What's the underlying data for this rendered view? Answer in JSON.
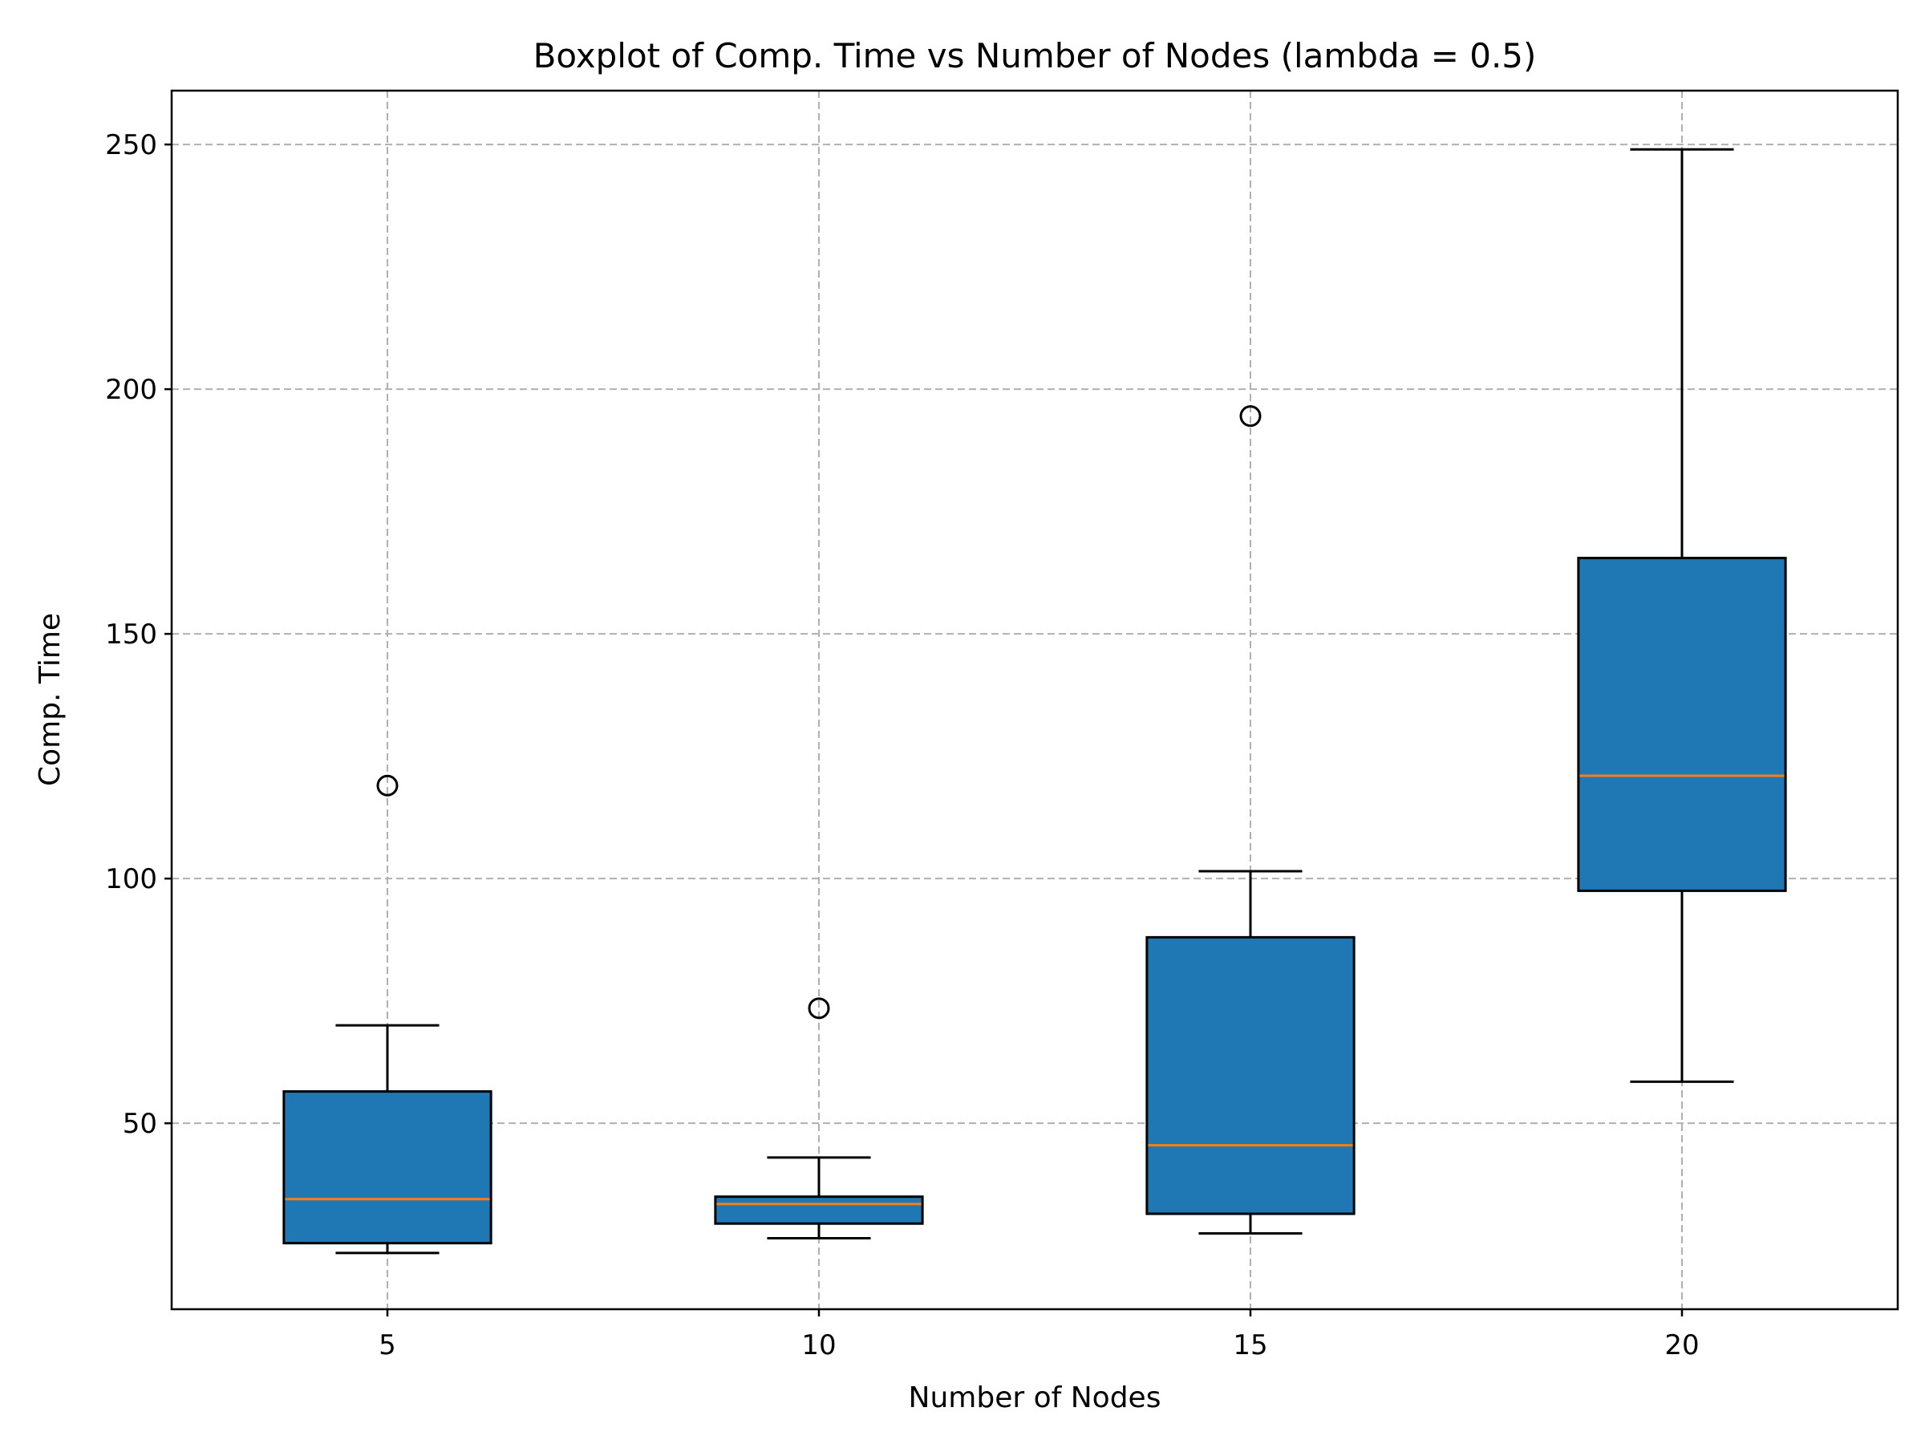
{
  "chart_data": {
    "type": "boxplot",
    "title": "Boxplot of Comp. Time vs Number of Nodes (lambda = 0.5)",
    "xlabel": "Number of Nodes",
    "ylabel": "Comp. Time",
    "categories": [
      "5",
      "10",
      "15",
      "20"
    ],
    "x_range": [
      2.5,
      22.5
    ],
    "ylim": [
      12,
      261
    ],
    "y_ticks": [
      50,
      100,
      150,
      200,
      250
    ],
    "grid": true,
    "colors": {
      "box_fill": "#1f77b4",
      "median": "#ff7f0e",
      "edge": "#000000",
      "grid": "#b0b0b0"
    },
    "boxes": [
      {
        "label": "5",
        "x": 5,
        "whisker_low": 23.5,
        "q1": 25.5,
        "median": 34.5,
        "q3": 56.5,
        "whisker_high": 70,
        "fliers": [
          119
        ]
      },
      {
        "label": "10",
        "x": 10,
        "whisker_low": 26.5,
        "q1": 29.5,
        "median": 33.5,
        "q3": 35,
        "whisker_high": 43,
        "fliers": [
          73.5
        ]
      },
      {
        "label": "15",
        "x": 15,
        "whisker_low": 27.5,
        "q1": 31.5,
        "median": 45.5,
        "q3": 88,
        "whisker_high": 101.5,
        "fliers": [
          194.5
        ]
      },
      {
        "label": "20",
        "x": 20,
        "whisker_low": 58.5,
        "q1": 97.5,
        "median": 121,
        "q3": 165.5,
        "whisker_high": 249,
        "fliers": []
      }
    ]
  }
}
